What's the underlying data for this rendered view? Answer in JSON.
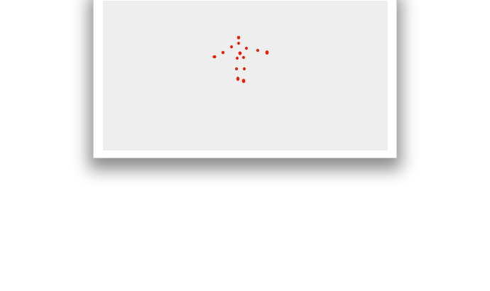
{
  "canvas": {
    "background": "#eeeeee",
    "frame_background": "#ffffff",
    "stroke_color": "#e8200c",
    "drawing": {
      "icon": "dotted-stick-figure"
    }
  }
}
